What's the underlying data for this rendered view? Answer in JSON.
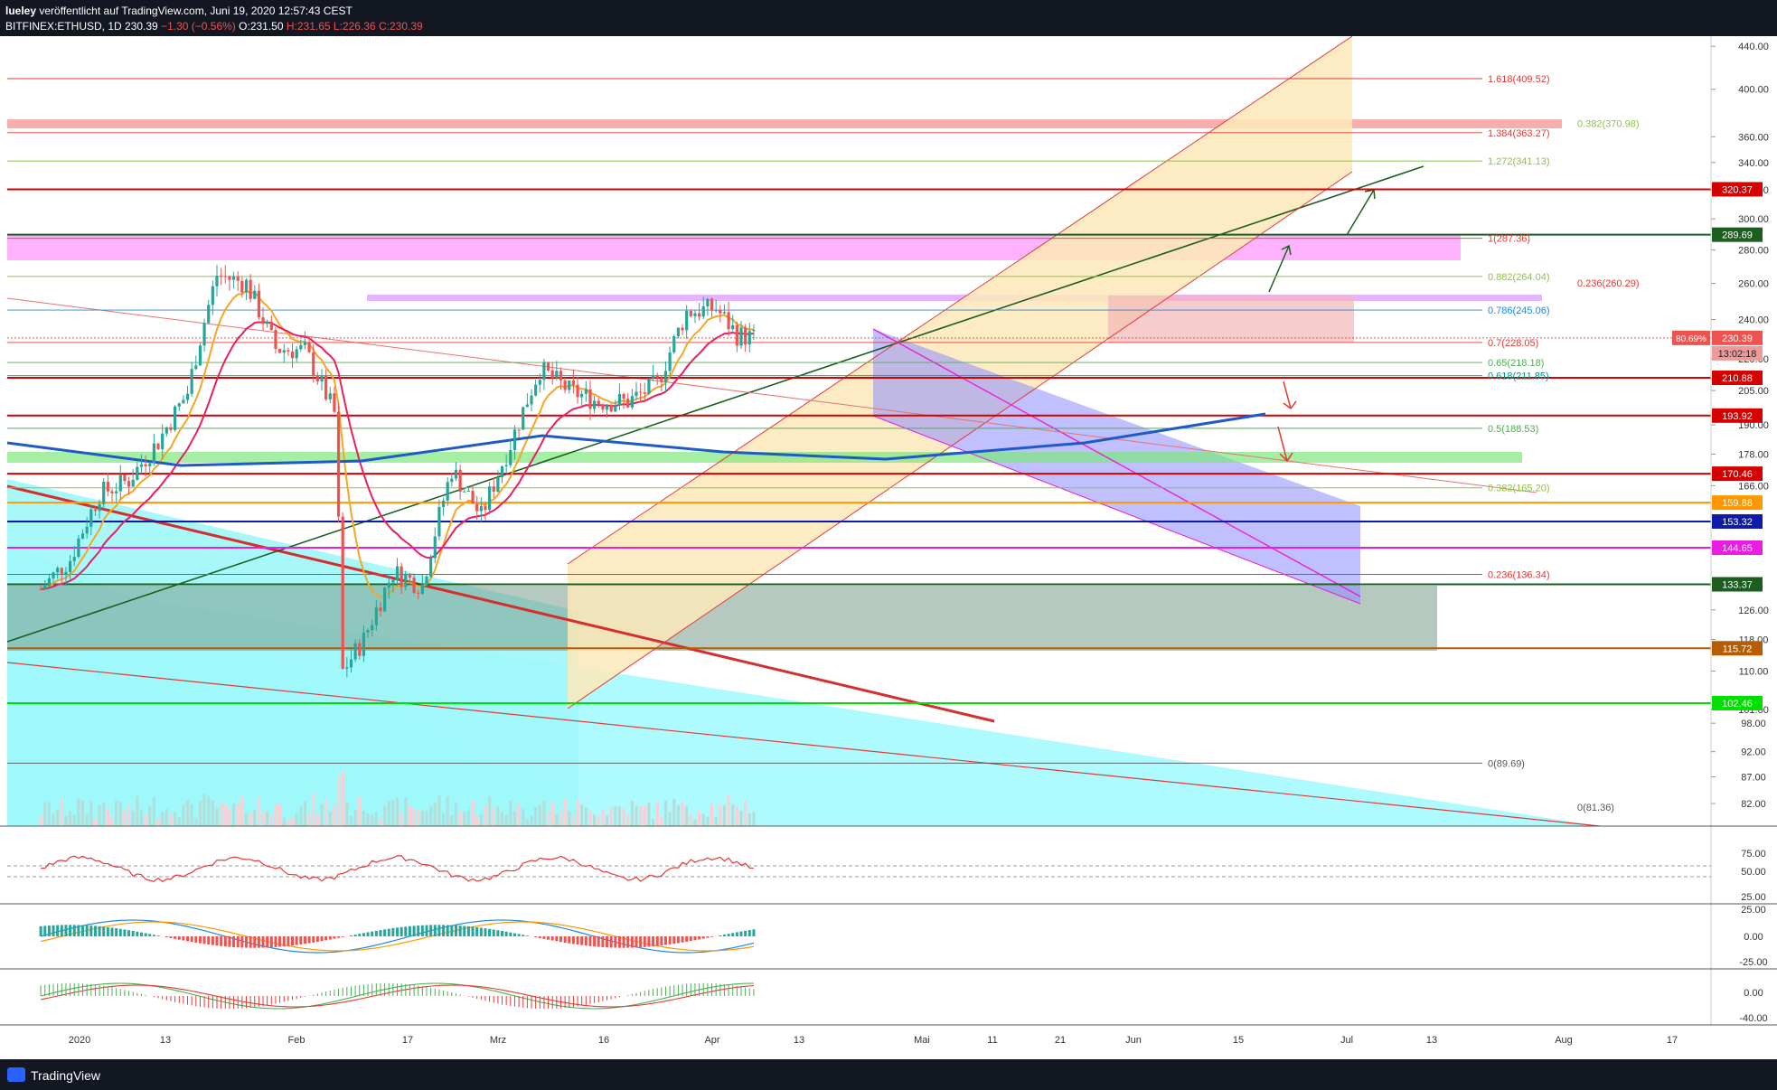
{
  "header": {
    "author": "lueley",
    "published": "veröffentlicht auf TradingView.com, Juni 19, 2020 12:57:43 CEST",
    "symbol": "BITFINEX:ETHUSD, 1D",
    "last": "230.39",
    "change": "−1.30 (−0.56%)",
    "ohlc_o": "O:231.50",
    "ohlc_h": "H:231.65",
    "ohlc_l": "L:226.36",
    "ohlc_c": "C:230.39"
  },
  "footer": {
    "brand": "TradingView"
  },
  "colors": {
    "up": "#26a69a",
    "down": "#ef5350",
    "ema_orange": "#f5a623",
    "ema_red": "#e91e63",
    "ma_blue": "#1e5bc6",
    "fib_red": "#e53935",
    "fib_green": "#8bc34a"
  },
  "chart_data": {
    "type": "candlestick",
    "title": "BITFINEX:ETHUSD, 1D",
    "x_ticks": [
      "2020",
      "13",
      "Feb",
      "17",
      "Mrz",
      "16",
      "Apr",
      "13",
      "Mai",
      "11",
      "21",
      "Jun",
      "15",
      "Jul",
      "13",
      "Aug",
      "17"
    ],
    "price_axis_ticks": [
      440,
      400,
      360,
      340,
      320,
      300,
      280,
      260,
      240,
      220,
      205,
      190,
      178,
      166,
      126,
      118,
      110,
      101,
      98,
      92,
      87,
      82
    ],
    "price_axis_tick_labels": [
      "440.00",
      "400.00",
      "360.00",
      "340.00",
      "320.00",
      "300.00",
      "280.00",
      "260.00",
      "240.00",
      "220.00",
      "205.00",
      "190.00",
      "178.00",
      "166.00",
      "126.00",
      "118.00",
      "110.00",
      "101.00",
      "98.00",
      "92.00",
      "87.00",
      "82.00"
    ],
    "scale": "log",
    "ylim": [
      78,
      450
    ],
    "candles_sampled": [
      {
        "t": "2020-01-01",
        "c": 132
      },
      {
        "t": "2020-01-08",
        "c": 141
      },
      {
        "t": "2020-01-15",
        "c": 163
      },
      {
        "t": "2020-01-22",
        "c": 168
      },
      {
        "t": "2020-01-29",
        "c": 183
      },
      {
        "t": "2020-02-05",
        "c": 204
      },
      {
        "t": "2020-02-12",
        "c": 265
      },
      {
        "t": "2020-02-19",
        "c": 260
      },
      {
        "t": "2020-02-26",
        "c": 225
      },
      {
        "t": "2020-03-04",
        "c": 224
      },
      {
        "t": "2020-03-11",
        "c": 195
      },
      {
        "t": "2020-03-13",
        "c": 110
      },
      {
        "t": "2020-03-18",
        "c": 118
      },
      {
        "t": "2020-03-25",
        "c": 137
      },
      {
        "t": "2020-04-01",
        "c": 133
      },
      {
        "t": "2020-04-08",
        "c": 172
      },
      {
        "t": "2020-04-15",
        "c": 155
      },
      {
        "t": "2020-04-22",
        "c": 182
      },
      {
        "t": "2020-04-29",
        "c": 215
      },
      {
        "t": "2020-05-06",
        "c": 205
      },
      {
        "t": "2020-05-13",
        "c": 200
      },
      {
        "t": "2020-05-20",
        "c": 200
      },
      {
        "t": "2020-05-27",
        "c": 208
      },
      {
        "t": "2020-06-03",
        "c": 244
      },
      {
        "t": "2020-06-10",
        "c": 246
      },
      {
        "t": "2020-06-15",
        "c": 232
      },
      {
        "t": "2020-06-19",
        "c": 230.39
      }
    ],
    "horizontal_levels": [
      {
        "price": 320.37,
        "label": "320.37",
        "color": "#d50000"
      },
      {
        "price": 289.69,
        "label": "289.69",
        "color": "#1b5e20"
      },
      {
        "price": 230.39,
        "label": "230.39",
        "color": "#ef5350"
      },
      {
        "price": 210.88,
        "label": "210.88",
        "color": "#d50000"
      },
      {
        "price": 193.92,
        "label": "193.92",
        "color": "#d50000"
      },
      {
        "price": 170.46,
        "label": "170.46",
        "color": "#d50000"
      },
      {
        "price": 159.88,
        "label": "159.88",
        "color": "#ff9800"
      },
      {
        "price": 153.32,
        "label": "153.32",
        "color": "#0d1ba8"
      },
      {
        "price": 144.65,
        "label": "144.65",
        "color": "#e91ee0"
      },
      {
        "price": 133.37,
        "label": "133.37",
        "color": "#1b5e20"
      },
      {
        "price": 115.72,
        "label": "115.72",
        "color": "#b85c00"
      },
      {
        "price": 102.46,
        "label": "102.46",
        "color": "#00e000"
      }
    ],
    "countdown_label": "13:02:18",
    "percent_label": "80.69%",
    "fib_labels": [
      {
        "price": 409.52,
        "label": "1.618(409.52)",
        "color": "#e53935"
      },
      {
        "price": 363.27,
        "label": "1.384(363.27)",
        "color": "#e53935"
      },
      {
        "price": 341.13,
        "label": "1.272(341.13)",
        "color": "#8bc34a"
      },
      {
        "price": 287.36,
        "label": "1(287.36)",
        "color": "#e53935"
      },
      {
        "price": 264.04,
        "label": "0.882(264.04)",
        "color": "#8bc34a"
      },
      {
        "price": 245.06,
        "label": "0.786(245.06)",
        "color": "#1e88e5"
      },
      {
        "price": 228.05,
        "label": "0.7(228.05)",
        "color": "#e53935"
      },
      {
        "price": 218.18,
        "label": "0.65(218.18)",
        "color": "#4caf50"
      },
      {
        "price": 211.85,
        "label": "0.618(211.85)",
        "color": "#009688"
      },
      {
        "price": 188.53,
        "label": "0.5(188.53)",
        "color": "#4caf50"
      },
      {
        "price": 165.2,
        "label": "0.382(165.20)",
        "color": "#8bc34a"
      },
      {
        "price": 136.34,
        "label": "0.236(136.34)",
        "color": "#e53935"
      },
      {
        "price": 89.69,
        "label": "0(89.69)",
        "color": "#555555"
      }
    ],
    "fib_labels_right": [
      {
        "price": 370.98,
        "label": "0.382(370.98)",
        "color": "#8bc34a"
      },
      {
        "price": 260.29,
        "label": "0.236(260.29)",
        "color": "#e53935"
      },
      {
        "price": 81.36,
        "label": "0(81.36)",
        "color": "#555555"
      }
    ],
    "rsi_ticks": [
      "75.00",
      "50.00",
      "25.00"
    ],
    "macd1_ticks": [
      "25.00",
      "0.00",
      "-25.00"
    ],
    "macd2_ticks": [
      "0.00",
      "-40.00"
    ]
  }
}
